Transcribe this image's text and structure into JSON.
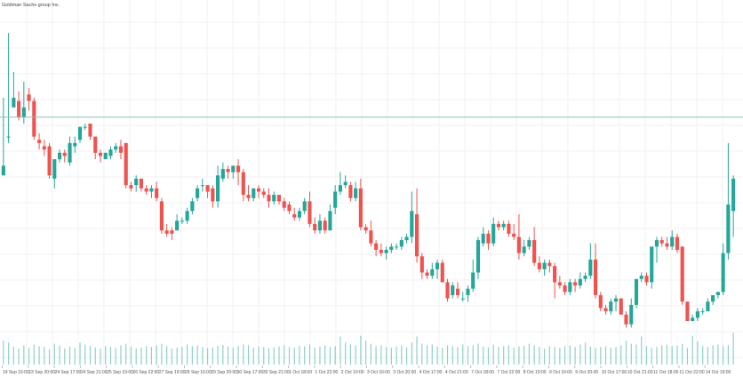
{
  "chart_data": {
    "type": "candlestick",
    "title": "Goldman Sachs group Inc.",
    "x_tick_labels": [
      "19 Sep 16:00",
      "23 Sep 20:00",
      "24 Sep 17:00",
      "24 Sep 21:00",
      "25 Sep 19:00",
      "26 Sep 22:00",
      "27 Sep 19:00",
      "29 Sep 16:00",
      "29 Sep 20:00",
      "30 Sep 17:00",
      "30 Sep 21:00",
      "1 Oct 18:00",
      "1 Oct 22:00",
      "2 Oct 19:00",
      "3 Oct 16:00",
      "3 Oct 20:00",
      "4 Oct 17:00",
      "4 Oct 21:00",
      "7 Oct 18:00",
      "7 Oct 22:00",
      "8 Oct 19:00",
      "9 Oct 16:00",
      "9 Oct 20:00",
      "10 Oct 17:00",
      "10 Oct 21:00",
      "11 Oct 18:00",
      "11 Oct 22:00",
      "14 Oct 19:00"
    ],
    "horizontal_line_level": 66,
    "y_range": [
      0,
      100
    ],
    "candles": [
      [
        48,
        51,
        72,
        51
      ],
      [
        60,
        60,
        92,
        58
      ],
      [
        69,
        72,
        80,
        70
      ],
      [
        71,
        66,
        74,
        65
      ],
      [
        66,
        69,
        77,
        64
      ],
      [
        73,
        71,
        75,
        68
      ],
      [
        71,
        60,
        72,
        59
      ],
      [
        59,
        58,
        61,
        56
      ],
      [
        57,
        56,
        59,
        54
      ],
      [
        57,
        48,
        58,
        47
      ],
      [
        47,
        53,
        53,
        44
      ],
      [
        53,
        55,
        56,
        52
      ],
      [
        55,
        54,
        56,
        52
      ],
      [
        52,
        58,
        60,
        51
      ],
      [
        57,
        58,
        60,
        55
      ],
      [
        59,
        63,
        63,
        58
      ],
      [
        63,
        63,
        64,
        62
      ],
      [
        64,
        60,
        64,
        59
      ],
      [
        60,
        55,
        60,
        53
      ],
      [
        55,
        54,
        56,
        52
      ],
      [
        53,
        55,
        55,
        53
      ],
      [
        54,
        56,
        57,
        53
      ],
      [
        56,
        57,
        58,
        55
      ],
      [
        57,
        55,
        59,
        53
      ],
      [
        58,
        45,
        58,
        44
      ],
      [
        45,
        44,
        46,
        43
      ],
      [
        45,
        47,
        48,
        43
      ],
      [
        47,
        44,
        47,
        43
      ],
      [
        44,
        43,
        45,
        42
      ],
      [
        43,
        44,
        45,
        41
      ],
      [
        44,
        41,
        46,
        40
      ],
      [
        40,
        31,
        41,
        30
      ],
      [
        31,
        30,
        33,
        29
      ],
      [
        31,
        30,
        32,
        28
      ],
      [
        31,
        34,
        36,
        31
      ],
      [
        34,
        34,
        35,
        33
      ],
      [
        34,
        37,
        38,
        33
      ],
      [
        37,
        40,
        41,
        36
      ],
      [
        41,
        44,
        45,
        40
      ],
      [
        45,
        45,
        47,
        43
      ],
      [
        45,
        43,
        45,
        41
      ],
      [
        44,
        40,
        45,
        38
      ],
      [
        40,
        48,
        51,
        38
      ],
      [
        47,
        50,
        52,
        46
      ],
      [
        50,
        49,
        51,
        47
      ],
      [
        49,
        51,
        51,
        47
      ],
      [
        51,
        49,
        53,
        45
      ],
      [
        49,
        42,
        50,
        40
      ],
      [
        42,
        41,
        45,
        40
      ],
      [
        41,
        44,
        44,
        40
      ],
      [
        44,
        43,
        45,
        41
      ],
      [
        43,
        42,
        44,
        41
      ],
      [
        42,
        40,
        44,
        38
      ],
      [
        40,
        42,
        43,
        39
      ],
      [
        42,
        40,
        42,
        39
      ],
      [
        40,
        38,
        41,
        37
      ],
      [
        39,
        37,
        40,
        36
      ],
      [
        36,
        35,
        38,
        34
      ],
      [
        35,
        37,
        38,
        34
      ],
      [
        37,
        40,
        41,
        36
      ],
      [
        40,
        33,
        43,
        32
      ],
      [
        33,
        31,
        35,
        30
      ],
      [
        31,
        34,
        36,
        30
      ],
      [
        34,
        31,
        35,
        30
      ],
      [
        31,
        37,
        39,
        31
      ],
      [
        38,
        43,
        45,
        36
      ],
      [
        43,
        45,
        49,
        42
      ],
      [
        45,
        46,
        48,
        44
      ],
      [
        45,
        41,
        46,
        40
      ],
      [
        41,
        44,
        46,
        40
      ],
      [
        44,
        32,
        47,
        31
      ],
      [
        32,
        31,
        33,
        30
      ],
      [
        31,
        27,
        34,
        26
      ],
      [
        27,
        25,
        28,
        23
      ],
      [
        25,
        24,
        27,
        23
      ],
      [
        24,
        25,
        26,
        22
      ],
      [
        25,
        26,
        27,
        24
      ],
      [
        26,
        26,
        27,
        25
      ],
      [
        26,
        28,
        29,
        25
      ],
      [
        28,
        29,
        30,
        27
      ],
      [
        29,
        37,
        43,
        27
      ],
      [
        36,
        23,
        44,
        21
      ],
      [
        23,
        18,
        24,
        16
      ],
      [
        18,
        17,
        19,
        16
      ],
      [
        17,
        19,
        21,
        16
      ],
      [
        19,
        21,
        22,
        16
      ],
      [
        21,
        15,
        22,
        15
      ],
      [
        15,
        10,
        16,
        9
      ],
      [
        11,
        14,
        15,
        10
      ],
      [
        13,
        11,
        15,
        10
      ],
      [
        10,
        10,
        12,
        9
      ],
      [
        11,
        13,
        14,
        9
      ],
      [
        13,
        18,
        22,
        12
      ],
      [
        18,
        28,
        29,
        16
      ],
      [
        27,
        30,
        32,
        26
      ],
      [
        30,
        27,
        31,
        25
      ],
      [
        27,
        33,
        35,
        26
      ],
      [
        33,
        32,
        34,
        31
      ],
      [
        32,
        33,
        34,
        31
      ],
      [
        33,
        30,
        34,
        29
      ],
      [
        30,
        29,
        33,
        28
      ],
      [
        29,
        24,
        36,
        22
      ],
      [
        24,
        26,
        28,
        23
      ],
      [
        26,
        28,
        29,
        25
      ],
      [
        28,
        21,
        32,
        20
      ],
      [
        21,
        19,
        23,
        18
      ],
      [
        19,
        21,
        22,
        17
      ],
      [
        21,
        20,
        22,
        18
      ],
      [
        20,
        15,
        21,
        10
      ],
      [
        15,
        14,
        17,
        13
      ],
      [
        14,
        12,
        15,
        11
      ],
      [
        12,
        15,
        16,
        11
      ],
      [
        15,
        14,
        16,
        12
      ],
      [
        14,
        16,
        18,
        13
      ],
      [
        16,
        17,
        18,
        15
      ],
      [
        17,
        22,
        27,
        16
      ],
      [
        22,
        11,
        27,
        10
      ],
      [
        11,
        7,
        12,
        6
      ],
      [
        7,
        6,
        8,
        5
      ],
      [
        6,
        9,
        10,
        5
      ],
      [
        9,
        10,
        11,
        6
      ],
      [
        10,
        5,
        10,
        5
      ],
      [
        5,
        2,
        6,
        1
      ],
      [
        2,
        8,
        10,
        1
      ],
      [
        8,
        16,
        16,
        7
      ],
      [
        16,
        17,
        18,
        15
      ],
      [
        17,
        15,
        18,
        14
      ],
      [
        15,
        26,
        26,
        13
      ],
      [
        26,
        28,
        29,
        21
      ],
      [
        28,
        27,
        29,
        26
      ],
      [
        27,
        26,
        29,
        25
      ],
      [
        26,
        29,
        31,
        25
      ],
      [
        29,
        25,
        30,
        24
      ],
      [
        26,
        9,
        26,
        8
      ],
      [
        9,
        3,
        9,
        3
      ],
      [
        3,
        4,
        5,
        3
      ],
      [
        4,
        6,
        7,
        3
      ],
      [
        6,
        6,
        7,
        5
      ],
      [
        6,
        9,
        10,
        6
      ],
      [
        9,
        11,
        11,
        8
      ],
      [
        11,
        12,
        12,
        10
      ],
      [
        12,
        24,
        27,
        11
      ],
      [
        24,
        39,
        58,
        22
      ],
      [
        37,
        47,
        48,
        29
      ]
    ],
    "volumes": [
      60,
      55,
      45,
      40,
      48,
      42,
      50,
      46,
      44,
      38,
      52,
      48,
      40,
      45,
      42,
      55,
      50,
      47,
      43,
      40,
      46,
      44,
      42,
      48,
      52,
      45,
      40,
      43,
      46,
      44,
      48,
      52,
      46,
      40,
      42,
      44,
      50,
      46,
      48,
      44,
      41,
      43,
      47,
      49,
      45,
      42,
      47,
      50,
      48,
      42,
      46,
      44,
      40,
      43,
      45,
      48,
      44,
      42,
      47,
      46,
      50,
      42,
      45,
      48,
      44,
      46,
      70,
      55,
      50,
      48,
      72,
      60,
      52,
      46,
      48,
      44,
      42,
      45,
      47,
      43,
      55,
      70,
      52,
      48,
      50,
      45,
      42,
      48,
      46,
      44,
      50,
      46,
      48,
      52,
      45,
      43,
      50,
      44,
      46,
      48,
      42,
      45,
      47,
      52,
      48,
      44,
      40,
      46,
      44,
      42,
      46,
      48,
      44,
      50,
      55,
      45,
      42,
      44,
      46,
      42,
      44,
      48,
      60,
      52,
      50,
      70,
      46,
      42,
      44,
      48,
      50,
      46,
      48,
      52,
      42,
      72,
      58,
      46,
      44,
      48,
      50,
      46,
      48,
      80
    ]
  }
}
